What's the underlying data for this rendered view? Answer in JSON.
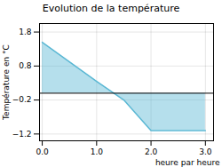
{
  "chart_data": {
    "type": "area",
    "title": "Evolution de la température",
    "xlabel": "heure par heure",
    "ylabel": "Température en °C",
    "x": [
      0,
      1,
      1.5,
      2,
      3
    ],
    "values": [
      1.5,
      0.35,
      -0.2,
      -1.1,
      -1.1
    ],
    "color": "#5bb8d4",
    "xlim": [
      -0.05,
      3.15
    ],
    "ylim": [
      -1.4,
      2.05
    ],
    "xticks": [
      0,
      1,
      2,
      3
    ],
    "yticks": [
      -1.2,
      -0.2,
      0.8,
      1.8
    ],
    "grid": true
  }
}
